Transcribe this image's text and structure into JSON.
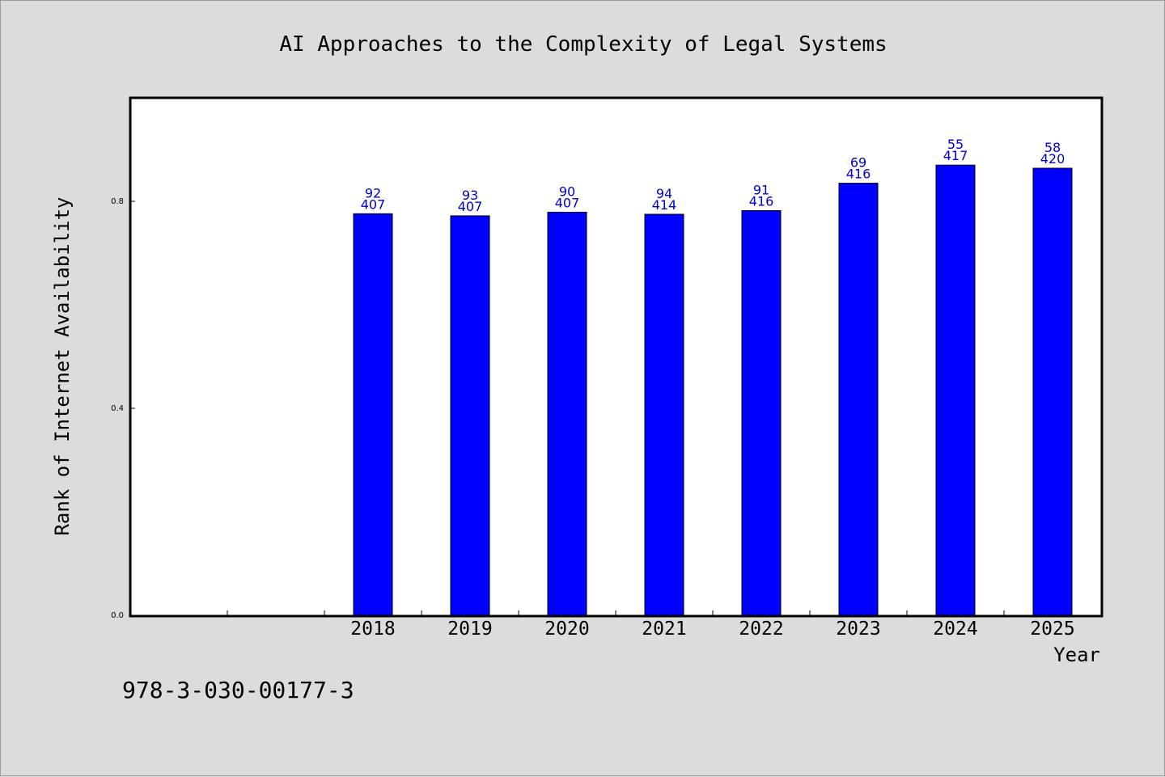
{
  "chart_data": {
    "type": "bar",
    "title": "AI Approaches to the Complexity of Legal Systems",
    "xlabel": "Year",
    "ylabel": "Rank of Internet Availability",
    "ylim": [
      0,
      1.0
    ],
    "yticks": [
      "0.0",
      "0.4",
      "0.8"
    ],
    "ytick_values": [
      0.0,
      0.4,
      0.8
    ],
    "x_slots": [
      "",
      "",
      "2018",
      "2019",
      "2020",
      "2021",
      "2022",
      "2023",
      "2024",
      "2025"
    ],
    "categories": [
      "2018",
      "2019",
      "2020",
      "2021",
      "2022",
      "2023",
      "2024",
      "2025"
    ],
    "values": [
      0.776,
      0.772,
      0.779,
      0.775,
      0.782,
      0.835,
      0.87,
      0.864
    ],
    "label_top": [
      "92",
      "93",
      "90",
      "94",
      "91",
      "69",
      "55",
      "58"
    ],
    "label_bottom": [
      "407",
      "407",
      "407",
      "414",
      "416",
      "416",
      "417",
      "420"
    ],
    "bar_color": "#0000ff",
    "label_color": "#0000cc",
    "grid": false,
    "legend": "none"
  },
  "footer": {
    "isbn": "978-3-030-00177-3"
  },
  "colors": {
    "background": "#dcdcdc",
    "plot_background": "#ffffff",
    "axis": "#000000"
  }
}
